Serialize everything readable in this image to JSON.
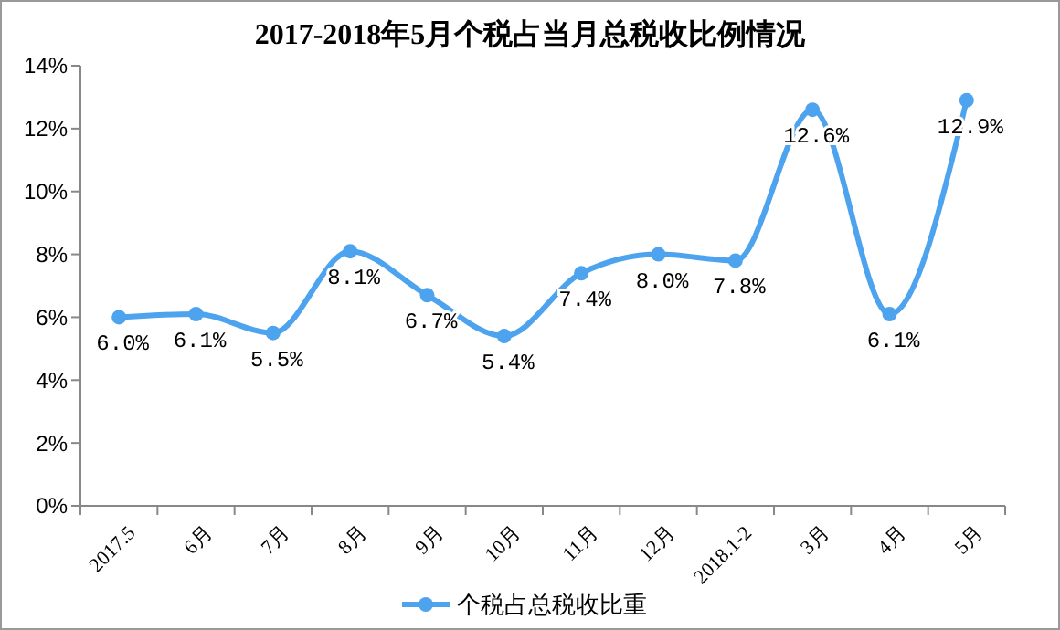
{
  "chart_data": {
    "type": "line",
    "title": "2017-2018年5月个税占当月总税收比例情况",
    "categories": [
      "2017.5",
      "6月",
      "7月",
      "8月",
      "9月",
      "10月",
      "11月",
      "12月",
      "2018.1-2",
      "3月",
      "4月",
      "5月"
    ],
    "series": [
      {
        "name": "个税占总税收比重",
        "color": "#4da3ee",
        "values": [
          6.0,
          6.1,
          5.5,
          8.1,
          6.7,
          5.4,
          7.4,
          8.0,
          7.8,
          12.6,
          6.1,
          12.9
        ],
        "value_labels": [
          "6.0%",
          "6.1%",
          "5.5%",
          "8.1%",
          "6.7%",
          "5.4%",
          "7.4%",
          "8.0%",
          "7.8%",
          "12.6%",
          "6.1%",
          "12.9%"
        ]
      }
    ],
    "ylim": [
      0,
      14
    ],
    "yticks": [
      {
        "value": 0,
        "label": "0%"
      },
      {
        "value": 2,
        "label": "2%"
      },
      {
        "value": 4,
        "label": "4%"
      },
      {
        "value": 6,
        "label": "6%"
      },
      {
        "value": 8,
        "label": "8%"
      },
      {
        "value": 10,
        "label": "10%"
      },
      {
        "value": 12,
        "label": "12%"
      },
      {
        "value": 14,
        "label": "14%"
      }
    ],
    "grid": false,
    "legend": "bottom",
    "marker": "circle",
    "line_style": "solid"
  }
}
